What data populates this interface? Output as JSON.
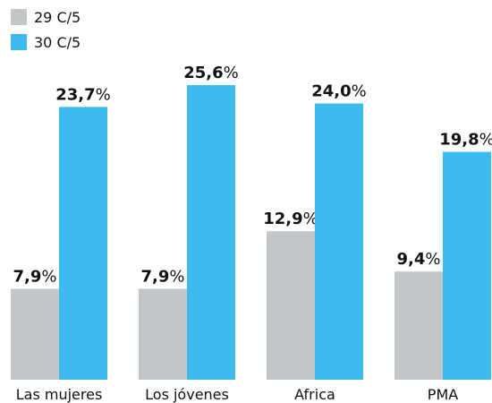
{
  "chart_data": {
    "type": "bar",
    "categories": [
      "Las mujeres",
      "Los jóvenes",
      "Africa",
      "PMA"
    ],
    "series": [
      {
        "name": "29 C/5",
        "color": "#c3c6c8",
        "values": [
          7.9,
          7.9,
          12.9,
          9.4
        ],
        "value_labels": [
          "7,9%",
          "7,9%",
          "12,9%",
          "9,4%"
        ]
      },
      {
        "name": "30 C/5",
        "color": "#3dbbef",
        "values": [
          23.7,
          25.6,
          24.0,
          19.8
        ],
        "value_labels": [
          "23,7%",
          "25,6%",
          "24,0%",
          "19,8%"
        ]
      }
    ]
  }
}
